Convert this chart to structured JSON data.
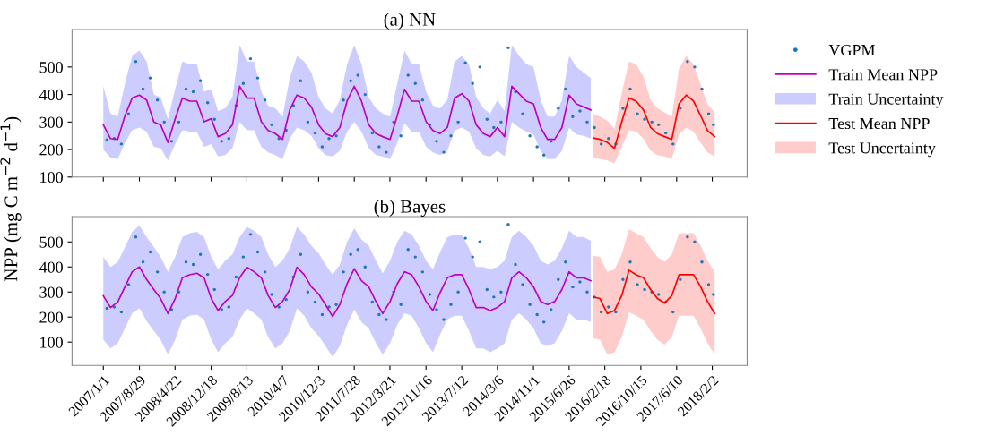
{
  "chart_data": [
    {
      "type": "line",
      "title": "(a) NN",
      "xlim": [
        "2006-06-07",
        "2018-09-22"
      ],
      "ylim": [
        100,
        636
      ],
      "yticks": [
        100,
        200,
        300,
        400,
        500
      ],
      "xticks": [
        {
          "value": "2007-01-01",
          "label": null
        },
        {
          "value": "2007-08-29",
          "label": null
        },
        {
          "value": "2008-04-22",
          "label": null
        },
        {
          "value": "2008-12-18",
          "label": null
        },
        {
          "value": "2009-08-13",
          "label": null
        },
        {
          "value": "2010-04-07",
          "label": null
        },
        {
          "value": "2010-12-03",
          "label": null
        },
        {
          "value": "2011-07-28",
          "label": null
        },
        {
          "value": "2012-03-21",
          "label": null
        },
        {
          "value": "2012-11-16",
          "label": null
        },
        {
          "value": "2013-07-12",
          "label": null
        },
        {
          "value": "2014-03-06",
          "label": null
        },
        {
          "value": "2014-11-01",
          "label": null
        },
        {
          "value": "2015-06-26",
          "label": null
        },
        {
          "value": "2016-02-18",
          "label": null
        },
        {
          "value": "2016-10-15",
          "label": null
        },
        {
          "value": "2017-06-10",
          "label": null
        },
        {
          "value": "2018-02-02",
          "label": null
        }
      ],
      "tick_labels": "y",
      "legend": "right",
      "grid": false,
      "series": [
        {
          "type": "scatter",
          "name": "VGPM",
          "color": "#1f77b4",
          "marker": "circle",
          "x": [
            "2007-01-25",
            "2007-03-14",
            "2007-05-01",
            "2007-06-18",
            "2007-08-05",
            "2007-09-22",
            "2007-11-09",
            "2007-12-27",
            "2008-02-10",
            "2008-03-30",
            "2008-05-17",
            "2008-07-04",
            "2008-08-21",
            "2008-10-08",
            "2008-11-25",
            "2009-01-09",
            "2009-02-26",
            "2009-04-15",
            "2009-06-02",
            "2009-07-20",
            "2009-09-06",
            "2009-10-24",
            "2009-12-11",
            "2010-01-25",
            "2010-03-14",
            "2010-05-01",
            "2010-06-18",
            "2010-08-05",
            "2010-09-22",
            "2010-11-09",
            "2010-12-27",
            "2011-02-10",
            "2011-03-30",
            "2011-05-17",
            "2011-07-04",
            "2011-08-21",
            "2011-10-08",
            "2011-11-25",
            "2012-01-09",
            "2012-02-26",
            "2012-04-15",
            "2012-06-02",
            "2012-07-20",
            "2012-09-06",
            "2012-10-24",
            "2012-12-11",
            "2013-01-25",
            "2013-03-14",
            "2013-05-01",
            "2013-06-18",
            "2013-08-05",
            "2013-09-22",
            "2013-11-09",
            "2013-12-27",
            "2014-02-10",
            "2014-03-30",
            "2014-05-17",
            "2014-07-04",
            "2014-08-21",
            "2014-10-08",
            "2014-11-25",
            "2015-01-09",
            "2015-02-26",
            "2015-04-15",
            "2015-06-02",
            "2015-07-20",
            "2015-09-06",
            "2015-10-24",
            "2015-12-11",
            "2016-01-25",
            "2016-03-14",
            "2016-05-01",
            "2016-06-18",
            "2016-08-05",
            "2016-09-22",
            "2016-11-09",
            "2016-12-27",
            "2017-02-10",
            "2017-03-30",
            "2017-05-17",
            "2017-07-04",
            "2017-08-21",
            "2017-10-08",
            "2017-11-25",
            "2018-01-09",
            "2018-02-10"
          ],
          "values": [
            235,
            240,
            220,
            330,
            520,
            420,
            460,
            380,
            300,
            230,
            300,
            420,
            410,
            450,
            370,
            310,
            230,
            240,
            360,
            440,
            530,
            460,
            380,
            290,
            240,
            270,
            360,
            450,
            300,
            260,
            210,
            240,
            250,
            380,
            450,
            470,
            400,
            260,
            210,
            190,
            300,
            250,
            470,
            440,
            380,
            290,
            230,
            190,
            250,
            300,
            515,
            440,
            500,
            310,
            280,
            300,
            570,
            410,
            330,
            250,
            210,
            180,
            230,
            350,
            420,
            320,
            340,
            300,
            280,
            220,
            240,
            220,
            350,
            420,
            330,
            310,
            300,
            290,
            260,
            220,
            350,
            520,
            500,
            420,
            330,
            290
          ]
        },
        {
          "type": "line",
          "name": "Train Mean NPP",
          "color": "#bf00bf",
          "x": [
            "2007-01-01",
            "2007-02-18",
            "2007-04-07",
            "2007-05-25",
            "2007-07-12",
            "2007-08-29",
            "2007-10-16",
            "2007-12-03",
            "2008-01-17",
            "2008-03-06",
            "2008-04-23",
            "2008-06-10",
            "2008-07-28",
            "2008-09-14",
            "2008-11-01",
            "2008-12-19",
            "2009-02-02",
            "2009-03-22",
            "2009-05-09",
            "2009-06-26",
            "2009-08-13",
            "2009-09-30",
            "2009-11-17",
            "2010-01-01",
            "2010-02-18",
            "2010-04-07",
            "2010-05-25",
            "2010-07-12",
            "2010-08-29",
            "2010-10-16",
            "2010-12-03",
            "2011-01-17",
            "2011-03-06",
            "2011-04-23",
            "2011-06-10",
            "2011-07-28",
            "2011-09-14",
            "2011-11-01",
            "2011-12-19",
            "2012-02-02",
            "2012-03-22",
            "2012-05-09",
            "2012-06-26",
            "2012-08-13",
            "2012-09-30",
            "2012-11-17",
            "2013-01-01",
            "2013-02-18",
            "2013-04-07",
            "2013-05-25",
            "2013-07-12",
            "2013-08-29",
            "2013-10-16",
            "2013-12-03",
            "2014-01-17",
            "2014-03-06",
            "2014-04-23",
            "2014-06-10",
            "2014-07-28",
            "2014-09-14",
            "2014-11-01",
            "2014-12-19",
            "2015-02-02",
            "2015-03-22",
            "2015-05-09",
            "2015-06-26",
            "2015-08-13",
            "2015-09-30",
            "2015-11-17"
          ],
          "values": [
            290,
            240,
            237,
            323,
            387,
            398,
            380,
            300,
            290,
            226,
            312,
            387,
            376,
            376,
            301,
            312,
            247,
            258,
            290,
            430,
            387,
            387,
            301,
            269,
            258,
            237,
            344,
            398,
            387,
            355,
            290,
            258,
            247,
            280,
            376,
            430,
            376,
            290,
            258,
            247,
            237,
            323,
            419,
            376,
            376,
            301,
            269,
            258,
            280,
            387,
            403,
            376,
            290,
            258,
            247,
            280,
            247,
            430,
            403,
            376,
            366,
            280,
            237,
            237,
            280,
            398,
            366,
            355,
            344
          ],
          "lower": [
            200,
            170,
            165,
            225,
            270,
            280,
            265,
            210,
            205,
            160,
            220,
            270,
            265,
            265,
            210,
            220,
            175,
            180,
            205,
            300,
            270,
            270,
            210,
            190,
            180,
            165,
            240,
            280,
            270,
            250,
            205,
            180,
            175,
            195,
            265,
            300,
            265,
            205,
            180,
            175,
            165,
            225,
            295,
            265,
            265,
            210,
            190,
            180,
            195,
            270,
            280,
            265,
            205,
            180,
            175,
            195,
            175,
            300,
            280,
            265,
            255,
            195,
            165,
            165,
            195,
            280,
            255,
            250,
            240
          ],
          "upper": [
            430,
            330,
            320,
            440,
            540,
            560,
            520,
            400,
            390,
            310,
            420,
            520,
            510,
            510,
            410,
            420,
            340,
            350,
            390,
            580,
            520,
            520,
            410,
            360,
            350,
            320,
            460,
            540,
            520,
            480,
            390,
            350,
            330,
            380,
            510,
            580,
            510,
            390,
            350,
            330,
            320,
            440,
            560,
            510,
            510,
            410,
            360,
            350,
            380,
            520,
            540,
            510,
            390,
            350,
            330,
            380,
            340,
            580,
            540,
            510,
            500,
            380,
            320,
            320,
            380,
            540,
            500,
            480,
            460
          ]
        },
        {
          "type": "area",
          "name": "Train Uncertainty",
          "color": "#ccccff"
        },
        {
          "type": "line",
          "name": "Test Mean NPP",
          "color": "#ff0000",
          "x": [
            "2015-12-03",
            "2016-01-17",
            "2016-03-06",
            "2016-04-23",
            "2016-06-10",
            "2016-07-28",
            "2016-09-14",
            "2016-11-01",
            "2016-12-19",
            "2017-02-02",
            "2017-03-22",
            "2017-05-09",
            "2017-06-26",
            "2017-08-13",
            "2017-09-30",
            "2017-11-17",
            "2018-01-01",
            "2018-02-18"
          ],
          "values": [
            242,
            237,
            226,
            204,
            301,
            387,
            376,
            344,
            280,
            258,
            247,
            237,
            366,
            398,
            376,
            323,
            269,
            247
          ],
          "lower": [
            170,
            165,
            160,
            150,
            210,
            270,
            265,
            240,
            195,
            180,
            175,
            165,
            255,
            280,
            265,
            225,
            190,
            175
          ],
          "upper": [
            330,
            320,
            305,
            275,
            405,
            520,
            510,
            465,
            380,
            350,
            335,
            320,
            495,
            540,
            510,
            435,
            365,
            335
          ]
        },
        {
          "type": "area",
          "name": "Test Uncertainty",
          "color": "#ffcccc"
        }
      ]
    },
    {
      "type": "line",
      "title": "(b) Bayes",
      "ylabel": "NPP (mg C m$^{−2}$ d$^{−1}$)",
      "xlim": [
        "2006-06-07",
        "2018-09-22"
      ],
      "ylim": [
        7,
        601
      ],
      "yticks": [
        100,
        200,
        300,
        400,
        500
      ],
      "xticks": [
        {
          "value": "2007-01-01",
          "label": "2007/1/1"
        },
        {
          "value": "2007-08-29",
          "label": "2007/8/29"
        },
        {
          "value": "2008-04-22",
          "label": "2008/4/22"
        },
        {
          "value": "2008-12-18",
          "label": "2008/12/18"
        },
        {
          "value": "2009-08-13",
          "label": "2009/8/13"
        },
        {
          "value": "2010-04-07",
          "label": "2010/4/7"
        },
        {
          "value": "2010-12-03",
          "label": "2010/12/3"
        },
        {
          "value": "2011-07-28",
          "label": "2011/7/28"
        },
        {
          "value": "2012-03-21",
          "label": "2012/3/21"
        },
        {
          "value": "2012-11-16",
          "label": "2012/11/16"
        },
        {
          "value": "2013-07-12",
          "label": "2013/7/12"
        },
        {
          "value": "2014-03-06",
          "label": "2014/3/6"
        },
        {
          "value": "2014-11-01",
          "label": "2014/11/1"
        },
        {
          "value": "2015-06-26",
          "label": "2015/6/26"
        },
        {
          "value": "2016-02-18",
          "label": "2016/2/18"
        },
        {
          "value": "2016-10-15",
          "label": "2016/10/15"
        },
        {
          "value": "2017-06-10",
          "label": "2017/6/10"
        },
        {
          "value": "2018-02-02",
          "label": "2018/2/2"
        }
      ],
      "grid": false,
      "series": [
        {
          "type": "scatter",
          "color": "#1f77b4",
          "marker": "circle",
          "x": [
            "2007-01-25",
            "2007-03-14",
            "2007-05-01",
            "2007-06-18",
            "2007-08-05",
            "2007-09-22",
            "2007-11-09",
            "2007-12-27",
            "2008-02-10",
            "2008-03-30",
            "2008-05-17",
            "2008-07-04",
            "2008-08-21",
            "2008-10-08",
            "2008-11-25",
            "2009-01-09",
            "2009-02-26",
            "2009-04-15",
            "2009-06-02",
            "2009-07-20",
            "2009-09-06",
            "2009-10-24",
            "2009-12-11",
            "2010-01-25",
            "2010-03-14",
            "2010-05-01",
            "2010-06-18",
            "2010-08-05",
            "2010-09-22",
            "2010-11-09",
            "2010-12-27",
            "2011-02-10",
            "2011-03-30",
            "2011-05-17",
            "2011-07-04",
            "2011-08-21",
            "2011-10-08",
            "2011-11-25",
            "2012-01-09",
            "2012-02-26",
            "2012-04-15",
            "2012-06-02",
            "2012-07-20",
            "2012-09-06",
            "2012-10-24",
            "2012-12-11",
            "2013-01-25",
            "2013-03-14",
            "2013-05-01",
            "2013-06-18",
            "2013-08-05",
            "2013-09-22",
            "2013-11-09",
            "2013-12-27",
            "2014-02-10",
            "2014-03-30",
            "2014-05-17",
            "2014-07-04",
            "2014-08-21",
            "2014-10-08",
            "2014-11-25",
            "2015-01-09",
            "2015-02-26",
            "2015-04-15",
            "2015-06-02",
            "2015-07-20",
            "2015-09-06",
            "2015-10-24",
            "2015-12-11",
            "2016-01-25",
            "2016-03-14",
            "2016-05-01",
            "2016-06-18",
            "2016-08-05",
            "2016-09-22",
            "2016-11-09",
            "2016-12-27",
            "2017-02-10",
            "2017-03-30",
            "2017-05-17",
            "2017-07-04",
            "2017-08-21",
            "2017-10-08",
            "2017-11-25",
            "2018-01-09",
            "2018-02-10"
          ],
          "values": [
            235,
            240,
            220,
            330,
            520,
            420,
            460,
            380,
            300,
            230,
            300,
            420,
            410,
            450,
            370,
            310,
            230,
            240,
            360,
            440,
            530,
            460,
            380,
            290,
            240,
            270,
            360,
            450,
            300,
            260,
            210,
            240,
            250,
            380,
            450,
            470,
            400,
            260,
            210,
            190,
            300,
            250,
            470,
            440,
            380,
            290,
            230,
            190,
            250,
            300,
            515,
            440,
            500,
            310,
            280,
            300,
            570,
            410,
            330,
            250,
            210,
            180,
            230,
            350,
            420,
            320,
            340,
            300,
            280,
            220,
            240,
            220,
            350,
            420,
            330,
            310,
            300,
            290,
            260,
            220,
            350,
            520,
            500,
            420,
            330,
            290
          ]
        },
        {
          "type": "line",
          "color": "#bf00bf",
          "x": [
            "2007-01-01",
            "2007-02-18",
            "2007-04-07",
            "2007-05-25",
            "2007-07-12",
            "2007-08-29",
            "2007-10-16",
            "2007-12-03",
            "2008-01-17",
            "2008-03-06",
            "2008-04-23",
            "2008-06-10",
            "2008-07-28",
            "2008-09-14",
            "2008-11-01",
            "2008-12-19",
            "2009-02-02",
            "2009-03-22",
            "2009-05-09",
            "2009-06-26",
            "2009-08-13",
            "2009-09-30",
            "2009-11-17",
            "2010-01-01",
            "2010-02-18",
            "2010-04-07",
            "2010-05-25",
            "2010-07-12",
            "2010-08-29",
            "2010-10-16",
            "2010-12-03",
            "2011-01-17",
            "2011-03-06",
            "2011-04-23",
            "2011-06-10",
            "2011-07-28",
            "2011-09-14",
            "2011-11-01",
            "2011-12-19",
            "2012-02-02",
            "2012-03-22",
            "2012-05-09",
            "2012-06-26",
            "2012-08-13",
            "2012-09-30",
            "2012-11-17",
            "2013-01-01",
            "2013-02-18",
            "2013-04-07",
            "2013-05-25",
            "2013-07-12",
            "2013-08-29",
            "2013-10-16",
            "2013-12-03",
            "2014-01-17",
            "2014-03-06",
            "2014-04-23",
            "2014-06-10",
            "2014-07-28",
            "2014-09-14",
            "2014-11-01",
            "2014-12-19",
            "2015-02-02",
            "2015-03-22",
            "2015-05-09",
            "2015-06-26",
            "2015-08-13",
            "2015-09-30",
            "2015-11-17"
          ],
          "values": [
            285,
            238,
            260,
            321,
            381,
            400,
            350,
            310,
            274,
            214,
            274,
            357,
            369,
            375,
            357,
            274,
            226,
            262,
            286,
            357,
            399,
            381,
            357,
            286,
            238,
            262,
            310,
            399,
            369,
            321,
            292,
            250,
            202,
            250,
            333,
            393,
            345,
            321,
            262,
            214,
            262,
            333,
            381,
            369,
            321,
            262,
            226,
            298,
            357,
            369,
            369,
            310,
            238,
            238,
            226,
            238,
            262,
            357,
            381,
            357,
            321,
            262,
            250,
            262,
            310,
            381,
            357,
            357,
            345
          ],
          "lower": [
            110,
            75,
            95,
            155,
            215,
            235,
            185,
            145,
            110,
            50,
            110,
            190,
            205,
            210,
            190,
            110,
            60,
            95,
            120,
            190,
            235,
            215,
            190,
            120,
            75,
            95,
            145,
            235,
            205,
            155,
            125,
            85,
            40,
            85,
            170,
            230,
            180,
            155,
            95,
            50,
            95,
            170,
            215,
            205,
            155,
            95,
            60,
            130,
            190,
            205,
            205,
            145,
            75,
            75,
            60,
            75,
            95,
            190,
            215,
            190,
            155,
            95,
            85,
            95,
            145,
            215,
            190,
            190,
            180
          ],
          "upper": [
            440,
            400,
            420,
            480,
            540,
            565,
            520,
            480,
            440,
            380,
            440,
            520,
            535,
            540,
            520,
            440,
            390,
            425,
            450,
            520,
            560,
            545,
            520,
            450,
            400,
            425,
            475,
            560,
            530,
            485,
            455,
            410,
            370,
            410,
            500,
            555,
            510,
            485,
            425,
            375,
            425,
            500,
            545,
            530,
            485,
            425,
            390,
            460,
            520,
            530,
            530,
            475,
            400,
            400,
            390,
            400,
            425,
            520,
            545,
            520,
            485,
            425,
            410,
            425,
            475,
            545,
            520,
            520,
            505
          ]
        },
        {
          "type": "area",
          "color": "#ccccff"
        },
        {
          "type": "line",
          "color": "#ff0000",
          "x": [
            "2015-12-03",
            "2016-01-17",
            "2016-03-06",
            "2016-04-23",
            "2016-06-10",
            "2016-07-28",
            "2016-09-14",
            "2016-11-01",
            "2016-12-19",
            "2017-02-02",
            "2017-03-22",
            "2017-05-09",
            "2017-06-26",
            "2017-08-13",
            "2017-09-30",
            "2017-11-17",
            "2018-01-01",
            "2018-02-18"
          ],
          "values": [
            280,
            274,
            214,
            226,
            286,
            387,
            369,
            357,
            310,
            274,
            256,
            286,
            369,
            369,
            369,
            321,
            262,
            214
          ],
          "lower": [
            115,
            110,
            50,
            60,
            120,
            220,
            205,
            190,
            145,
            110,
            90,
            120,
            205,
            205,
            205,
            155,
            95,
            50
          ],
          "upper": [
            445,
            440,
            380,
            390,
            450,
            550,
            535,
            520,
            475,
            440,
            420,
            450,
            535,
            535,
            535,
            485,
            425,
            380
          ]
        },
        {
          "type": "area",
          "color": "#ffcccc"
        }
      ]
    }
  ]
}
